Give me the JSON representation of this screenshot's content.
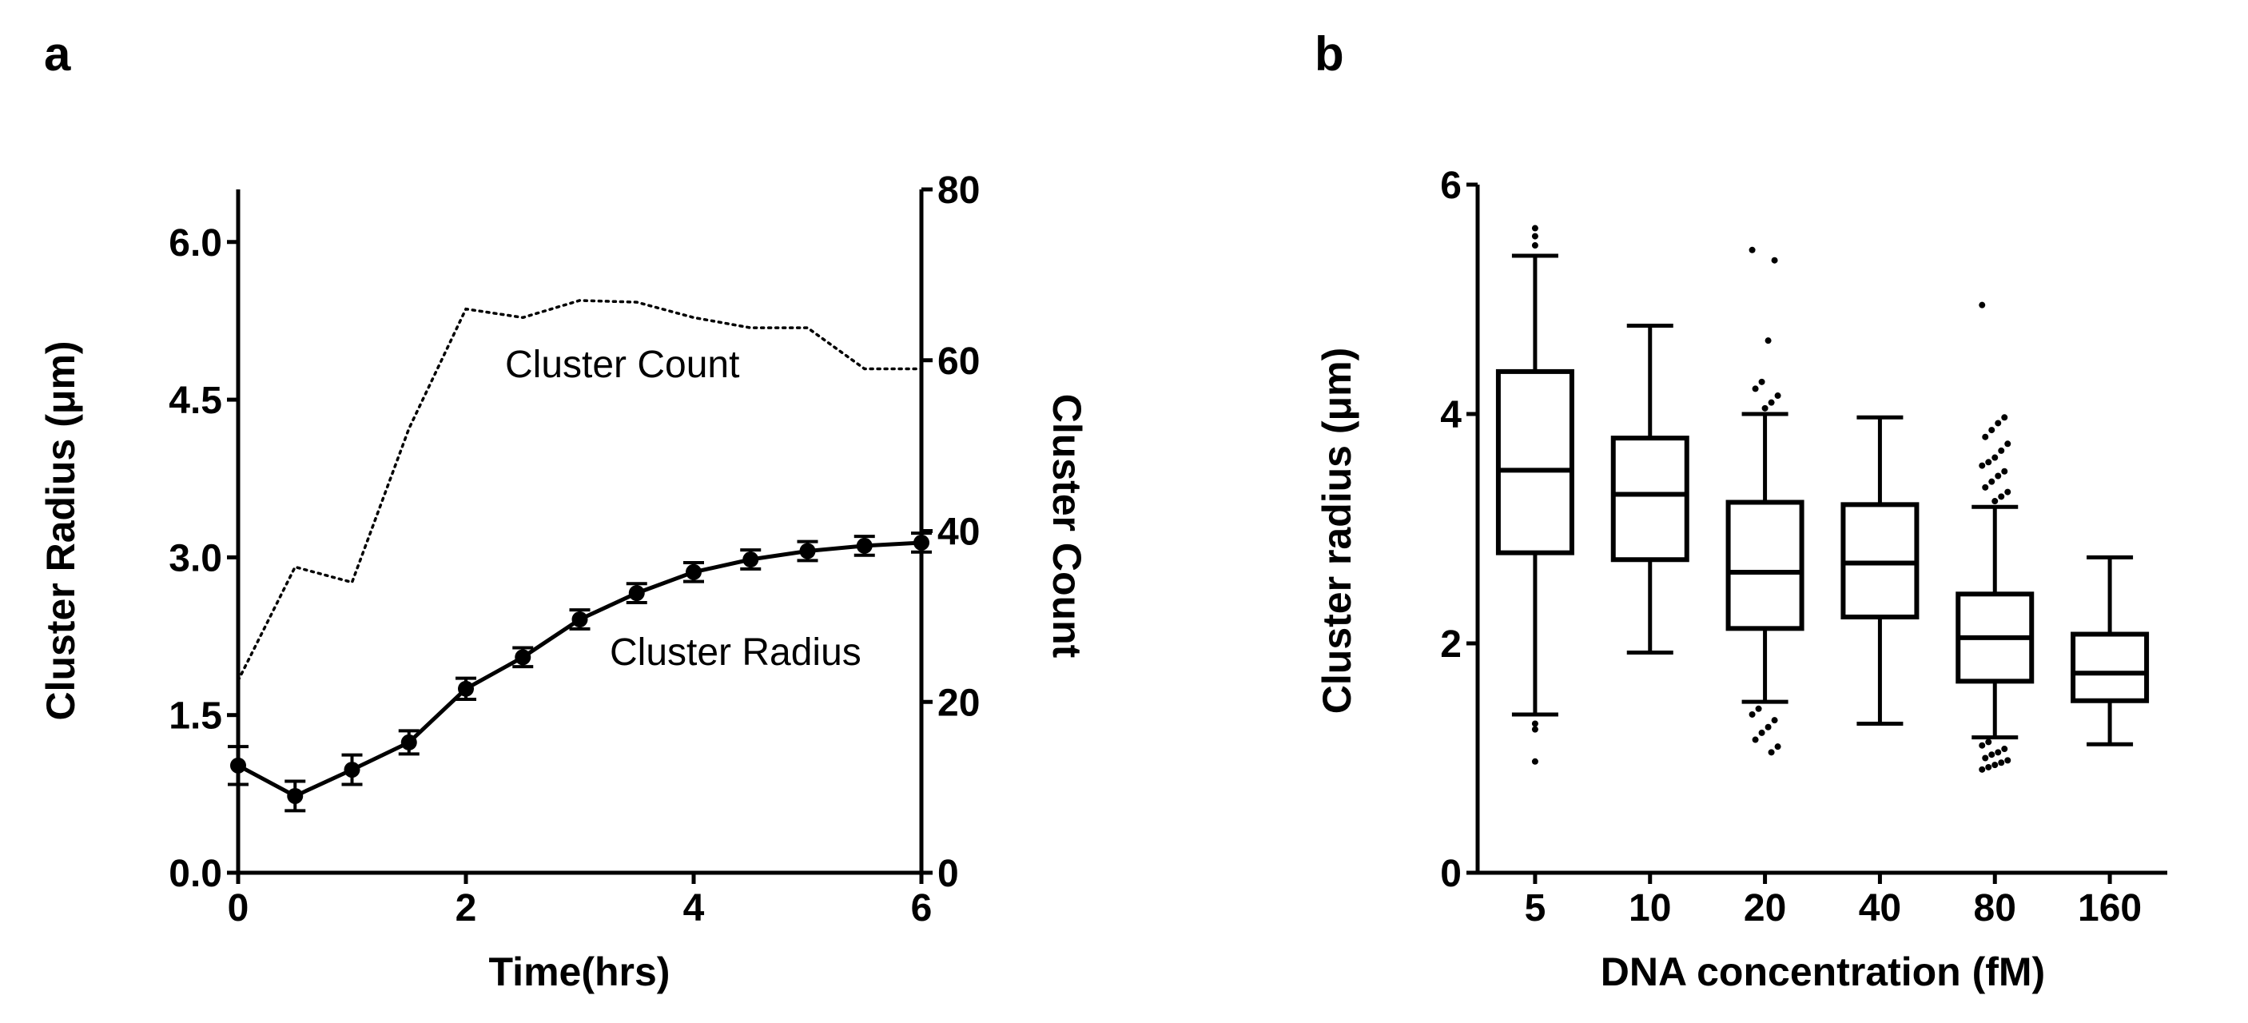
{
  "panels": {
    "a": {
      "label": "a"
    },
    "b": {
      "label": "b"
    }
  },
  "chart_data": [
    {
      "type": "line",
      "x": [
        0,
        0.5,
        1,
        1.5,
        2,
        2.5,
        3,
        3.5,
        4,
        4.5,
        5,
        5.5,
        6
      ],
      "xlabel": "Time(hrs)",
      "xlim": [
        0,
        6
      ],
      "xticks": [
        0,
        2,
        4,
        6
      ],
      "ylabel": "Cluster Radius (μm)",
      "ylim": [
        0,
        6.5
      ],
      "yticks": [
        "0.0",
        "1.5",
        "3.0",
        "4.5",
        "6.0"
      ],
      "y2label": "Cluster Count",
      "y2lim": [
        0,
        80
      ],
      "y2ticks": [
        0,
        20,
        40,
        60,
        80
      ],
      "grid": false,
      "annotations": {
        "count": "Cluster Count",
        "radius": "Cluster Radius"
      },
      "series": [
        {
          "name": "Cluster Radius",
          "axis": "left",
          "style": "solid-markers",
          "values": [
            1.02,
            0.73,
            0.98,
            1.24,
            1.75,
            2.05,
            2.41,
            2.66,
            2.86,
            2.98,
            3.06,
            3.11,
            3.14
          ],
          "errors": [
            0.18,
            0.14,
            0.14,
            0.11,
            0.1,
            0.09,
            0.09,
            0.09,
            0.09,
            0.09,
            0.09,
            0.09,
            0.09
          ]
        },
        {
          "name": "Cluster Count",
          "axis": "right",
          "style": "dotted",
          "values": [
            22.5,
            35.8,
            34.0,
            52.0,
            66.0,
            65.0,
            67.0,
            66.8,
            65.0,
            63.8,
            63.8,
            59.0,
            59.0
          ]
        }
      ]
    },
    {
      "type": "box",
      "categories": [
        "5",
        "10",
        "20",
        "40",
        "80",
        "160"
      ],
      "xlabel": "DNA concentration (fM)",
      "ylabel": "Cluster radius (μm)",
      "ylim": [
        0,
        6
      ],
      "yticks": [
        0,
        2,
        4,
        6
      ],
      "grid": false,
      "boxes": [
        {
          "q1": 2.79,
          "median": 3.51,
          "q3": 4.37,
          "whisker_low": 1.38,
          "whisker_high": 5.38,
          "outliers": [
            5.62,
            5.55,
            5.47,
            1.3,
            1.25,
            0.97
          ]
        },
        {
          "q1": 2.73,
          "median": 3.3,
          "q3": 3.79,
          "whisker_low": 1.92,
          "whisker_high": 4.77,
          "outliers": []
        },
        {
          "q1": 2.13,
          "median": 2.62,
          "q3": 3.23,
          "whisker_low": 1.49,
          "whisker_high": 4.0,
          "outliers": [
            5.43,
            5.34,
            4.64,
            4.28,
            4.22,
            4.16,
            4.1,
            4.05,
            1.43,
            1.38,
            1.33,
            1.27,
            1.22,
            1.16,
            1.1,
            1.05
          ]
        },
        {
          "q1": 2.23,
          "median": 2.7,
          "q3": 3.21,
          "whisker_low": 1.3,
          "whisker_high": 3.97,
          "outliers": []
        },
        {
          "q1": 1.67,
          "median": 2.05,
          "q3": 2.43,
          "whisker_low": 1.18,
          "whisker_high": 3.19,
          "outliers": [
            4.95,
            3.97,
            3.92,
            3.86,
            3.8,
            3.74,
            3.68,
            3.62,
            3.58,
            3.55,
            3.5,
            3.46,
            3.41,
            3.36,
            3.32,
            3.28,
            3.24,
            1.14,
            1.11,
            1.08,
            1.05,
            1.03,
            1.0,
            0.98,
            0.96,
            0.94,
            0.92,
            0.9
          ]
        },
        {
          "q1": 1.5,
          "median": 1.74,
          "q3": 2.08,
          "whisker_low": 1.12,
          "whisker_high": 2.75,
          "outliers": []
        }
      ]
    }
  ]
}
